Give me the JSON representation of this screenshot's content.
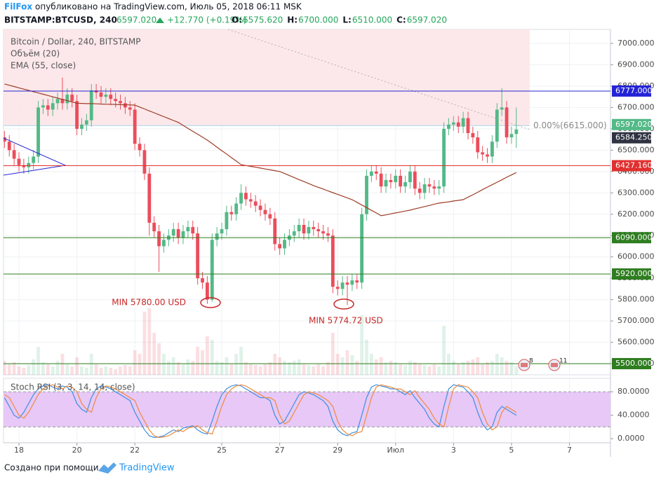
{
  "header": {
    "author": "FilFox",
    "published": "опубликовано на TradingView.com, Июль 05, 2018 06:11 MSK",
    "symbol": "BITSTAMP:BTCUSD, 240",
    "last": "6597.020",
    "change": "+12.770 (+0.19%)",
    "ohlc": [
      {
        "label": "O:",
        "value": "6575.620"
      },
      {
        "label": "H:",
        "value": "6700.000"
      },
      {
        "label": "L:",
        "value": "6510.000"
      },
      {
        "label": "C:",
        "value": "6597.020"
      }
    ]
  },
  "chart_data": {
    "type": "candlestick",
    "legend": [
      "Bitcoin / Dollar, 240, BITSTAMP",
      "Объём (20)",
      "EMA (55, close)"
    ],
    "up_color": "#53b987",
    "down_color": "#eb4d5c",
    "xlim": [
      -0.2,
      125.5
    ],
    "xticks": [
      {
        "value": 3,
        "label": "18"
      },
      {
        "value": 15,
        "label": "20"
      },
      {
        "value": 27,
        "label": "22"
      },
      {
        "value": 45,
        "label": "25"
      },
      {
        "value": 57,
        "label": "27"
      },
      {
        "value": 69,
        "label": "29"
      },
      {
        "value": 81,
        "label": "Июл"
      },
      {
        "value": 93,
        "label": "3"
      },
      {
        "value": 105,
        "label": "5"
      },
      {
        "value": 117,
        "label": "7"
      }
    ],
    "ylim": [
      5447.7,
      7065.6
    ],
    "yticks": [
      {
        "value": 5500,
        "label": "5500.000"
      },
      {
        "value": 5600,
        "label": "5600.000"
      },
      {
        "value": 5700,
        "label": "5700.000"
      },
      {
        "value": 5800,
        "label": "5800.000"
      },
      {
        "value": 5900,
        "label": "5900.000"
      },
      {
        "value": 6000,
        "label": "6000.000"
      },
      {
        "value": 6100,
        "label": "6100.000"
      },
      {
        "value": 6200,
        "label": "6200.000"
      },
      {
        "value": 6300,
        "label": "6300.000"
      },
      {
        "value": 6400,
        "label": "6400.000"
      },
      {
        "value": 6500,
        "label": "6500.000"
      },
      {
        "value": 6600,
        "label": "6600.000"
      },
      {
        "value": 6700,
        "label": "6700.000"
      },
      {
        "value": 6800,
        "label": "6800.000"
      },
      {
        "value": 6900,
        "label": "6900.000"
      },
      {
        "value": 7000,
        "label": "7000.000"
      }
    ],
    "grid": true,
    "open": [
      6560,
      6540,
      6500,
      6460,
      6430,
      6420,
      6440,
      6470,
      6700,
      6710,
      6690,
      6720,
      6740,
      6720,
      6760,
      6730,
      6600,
      6620,
      6640,
      6780,
      6770,
      6750,
      6760,
      6740,
      6730,
      6720,
      6700,
      6690,
      6530,
      6500,
      6390,
      6160,
      6120,
      6050,
      6080,
      6100,
      6130,
      6090,
      6120,
      6140,
      6110,
      5900,
      5880,
      5800,
      6080,
      6110,
      6130,
      6210,
      6200,
      6250,
      6300,
      6270,
      6260,
      6240,
      6220,
      6200,
      6180,
      6060,
      6040,
      6080,
      6100,
      6120,
      6150,
      6110,
      6140,
      6130,
      6120,
      6110,
      6100,
      5860,
      5850,
      5880,
      5870,
      5890,
      5880,
      6200,
      6380,
      6400,
      6390,
      6330,
      6360,
      6350,
      6380,
      6330,
      6350,
      6400,
      6320,
      6300,
      6340,
      6330,
      6320,
      6330,
      6600,
      6620,
      6630,
      6610,
      6650,
      6580,
      6560,
      6490,
      6480,
      6470,
      6540,
      6690,
      6700,
      6560,
      6575.62
    ],
    "high": [
      6590,
      6570,
      6530,
      6490,
      6460,
      6470,
      6500,
      6730,
      6740,
      6740,
      6750,
      6770,
      6840,
      6790,
      6790,
      6760,
      6650,
      6670,
      6810,
      6810,
      6800,
      6790,
      6790,
      6770,
      6760,
      6750,
      6730,
      6720,
      6560,
      6530,
      6420,
      6190,
      6150,
      6110,
      6130,
      6160,
      6160,
      6150,
      6170,
      6170,
      6140,
      5930,
      5910,
      6110,
      6140,
      6160,
      6240,
      6240,
      6280,
      6340,
      6330,
      6300,
      6290,
      6270,
      6250,
      6230,
      6210,
      6090,
      6110,
      6130,
      6150,
      6180,
      6180,
      6170,
      6170,
      6160,
      6150,
      6140,
      6130,
      5890,
      5910,
      5910,
      5920,
      5920,
      6230,
      6410,
      6430,
      6430,
      6420,
      6390,
      6390,
      6410,
      6410,
      6380,
      6430,
      6430,
      6350,
      6370,
      6370,
      6360,
      6360,
      6630,
      6650,
      6660,
      6660,
      6680,
      6680,
      6610,
      6590,
      6520,
      6510,
      6570,
      6720,
      6790,
      6730,
      6610,
      6700
    ],
    "low": [
      6510,
      6470,
      6430,
      6400,
      6390,
      6390,
      6410,
      6440,
      6670,
      6660,
      6660,
      6690,
      6690,
      6690,
      6700,
      6570,
      6570,
      6590,
      6610,
      6740,
      6720,
      6720,
      6710,
      6700,
      6690,
      6670,
      6660,
      6500,
      6470,
      6360,
      6100,
      6090,
      5930,
      6020,
      6050,
      6070,
      6060,
      6060,
      6090,
      6080,
      5870,
      5850,
      5780,
      5790,
      6050,
      6080,
      6100,
      6170,
      6170,
      6220,
      6240,
      6230,
      6210,
      6190,
      6170,
      6150,
      6030,
      6010,
      6010,
      6050,
      6070,
      6090,
      6080,
      6080,
      6100,
      6090,
      6080,
      6070,
      5830,
      5820,
      5820,
      5774.72,
      5840,
      5850,
      5850,
      6170,
      6350,
      6360,
      6300,
      6300,
      6320,
      6320,
      6300,
      6300,
      6320,
      6290,
      6270,
      6270,
      6300,
      6290,
      6290,
      6300,
      6570,
      6590,
      6580,
      6580,
      6550,
      6530,
      6460,
      6450,
      6440,
      6440,
      6510,
      6660,
      6530,
      6530,
      6510
    ],
    "close": [
      6540,
      6500,
      6460,
      6430,
      6420,
      6440,
      6470,
      6700,
      6710,
      6690,
      6720,
      6740,
      6720,
      6760,
      6730,
      6600,
      6620,
      6640,
      6780,
      6770,
      6750,
      6760,
      6740,
      6730,
      6720,
      6700,
      6690,
      6530,
      6500,
      6390,
      6160,
      6120,
      6050,
      6080,
      6100,
      6130,
      6090,
      6120,
      6140,
      6110,
      5900,
      5880,
      5800,
      6080,
      6110,
      6130,
      6210,
      6200,
      6250,
      6300,
      6270,
      6260,
      6240,
      6220,
      6200,
      6180,
      6060,
      6040,
      6080,
      6100,
      6120,
      6150,
      6110,
      6140,
      6130,
      6120,
      6110,
      6100,
      5860,
      5850,
      5880,
      5870,
      5890,
      5880,
      6200,
      6380,
      6400,
      6390,
      6330,
      6360,
      6350,
      6380,
      6330,
      6350,
      6400,
      6320,
      6300,
      6340,
      6330,
      6320,
      6330,
      6600,
      6620,
      6630,
      6610,
      6650,
      6580,
      6560,
      6490,
      6480,
      6470,
      6540,
      6690,
      6700,
      6560,
      6575.62,
      6597.02
    ],
    "volume": [
      20,
      15,
      18,
      12,
      10,
      14,
      22,
      40,
      18,
      15,
      12,
      20,
      30,
      15,
      12,
      25,
      12,
      10,
      30,
      15,
      10,
      12,
      10,
      8,
      12,
      14,
      12,
      35,
      30,
      90,
      95,
      60,
      45,
      30,
      20,
      25,
      18,
      15,
      22,
      20,
      40,
      35,
      55,
      50,
      20,
      18,
      25,
      15,
      30,
      40,
      18,
      15,
      14,
      12,
      15,
      18,
      30,
      25,
      20,
      18,
      20,
      22,
      15,
      14,
      12,
      15,
      12,
      18,
      60,
      30,
      25,
      35,
      28,
      20,
      85,
      50,
      30,
      22,
      25,
      18,
      20,
      18,
      15,
      14,
      20,
      18,
      15,
      14,
      12,
      15,
      12,
      70,
      30,
      20,
      15,
      18,
      20,
      22,
      25,
      15,
      18,
      20,
      30,
      25,
      20,
      18,
      12
    ],
    "ema": {
      "color": "#9c3d26",
      "values": [
        6810,
        6804,
        6798,
        6792,
        6786,
        6780,
        6774,
        6768,
        6762,
        6756,
        6750,
        6744,
        6738,
        6732,
        6726,
        6720,
        6719,
        6718,
        6718,
        6717,
        6716,
        6715,
        6715,
        6714,
        6713,
        6712,
        6712,
        6711,
        6702,
        6693,
        6684,
        6675,
        6666,
        6657,
        6648,
        6639,
        6630,
        6616,
        6602,
        6588,
        6575,
        6561,
        6547,
        6531,
        6514,
        6498,
        6482,
        6465,
        6449,
        6432,
        6428,
        6424,
        6420,
        6416,
        6412,
        6408,
        6404,
        6400,
        6391,
        6381,
        6372,
        6362,
        6353,
        6344,
        6334,
        6326,
        6318,
        6309,
        6301,
        6293,
        6285,
        6276,
        6268,
        6256,
        6243,
        6231,
        6218,
        6206,
        6193,
        6197,
        6202,
        6206,
        6210,
        6215,
        6219,
        6225,
        6230,
        6236,
        6241,
        6247,
        6252,
        6255,
        6258,
        6262,
        6265,
        6268,
        6280,
        6291,
        6303,
        6315,
        6327,
        6338,
        6350,
        6361,
        6373,
        6384,
        6395
      ]
    },
    "levels": [
      {
        "value": 6777,
        "label": "6777.000",
        "color": "#2424d6"
      },
      {
        "value": 6427.16,
        "label": "6427.160",
        "color": "#e0302f"
      },
      {
        "value": 6090,
        "label": "6090.000",
        "color": "#2e7d1f"
      },
      {
        "value": 5920,
        "label": "5920.000",
        "color": "#2e7d1f"
      },
      {
        "value": 5500,
        "label": "5500.000",
        "color": "#2e7d1f"
      }
    ],
    "price_tags": [
      {
        "value": 6597.02,
        "label": "6597.020",
        "color": "#53b987"
      },
      {
        "value": 6584.25,
        "label": "6584.250",
        "color": "#2f3241"
      }
    ],
    "fib": {
      "value": 6615,
      "label": "0.00%(6615.000)"
    },
    "annotations": [
      "MIN 5780.00 USD",
      "MIN 5774.72 USD"
    ],
    "badges": [
      "8",
      "11"
    ],
    "stoch": {
      "title": "Stoch RSI (3, 3, 14, 14, close)",
      "ylim": [
        -7,
        103
      ],
      "yticks": [
        {
          "value": 0,
          "label": "0.0000"
        },
        {
          "value": 40,
          "label": "40.0000"
        },
        {
          "value": 80,
          "label": "80.0000"
        }
      ],
      "band": [
        20,
        80
      ],
      "series": [
        {
          "name": "K",
          "color": "#3d8fe0",
          "values": [
            70,
            55,
            40,
            35,
            45,
            60,
            75,
            85,
            90,
            92,
            88,
            85,
            90,
            88,
            80,
            60,
            50,
            45,
            70,
            85,
            90,
            88,
            85,
            80,
            75,
            70,
            65,
            45,
            30,
            15,
            5,
            2,
            3,
            5,
            10,
            15,
            12,
            18,
            20,
            22,
            15,
            10,
            8,
            30,
            55,
            75,
            85,
            90,
            92,
            90,
            85,
            80,
            75,
            70,
            70,
            65,
            40,
            25,
            30,
            45,
            60,
            75,
            80,
            78,
            75,
            70,
            65,
            55,
            30,
            15,
            8,
            5,
            10,
            12,
            40,
            70,
            88,
            92,
            90,
            88,
            85,
            85,
            80,
            75,
            82,
            70,
            60,
            50,
            35,
            25,
            20,
            55,
            85,
            92,
            90,
            88,
            80,
            70,
            45,
            25,
            15,
            20,
            45,
            55,
            50,
            45,
            40
          ]
        },
        {
          "name": "D",
          "color": "#f08a3c",
          "values": [
            75,
            70,
            55,
            40,
            35,
            45,
            60,
            75,
            85,
            90,
            92,
            88,
            85,
            90,
            88,
            80,
            60,
            50,
            45,
            70,
            85,
            90,
            88,
            85,
            80,
            75,
            70,
            65,
            45,
            30,
            15,
            5,
            2,
            3,
            5,
            10,
            15,
            12,
            18,
            20,
            22,
            15,
            10,
            8,
            30,
            55,
            75,
            85,
            90,
            92,
            90,
            85,
            80,
            75,
            70,
            70,
            65,
            40,
            25,
            30,
            45,
            60,
            75,
            80,
            78,
            75,
            70,
            65,
            55,
            30,
            15,
            8,
            5,
            10,
            12,
            40,
            70,
            88,
            92,
            90,
            88,
            85,
            85,
            80,
            75,
            82,
            70,
            60,
            50,
            35,
            25,
            20,
            55,
            85,
            92,
            90,
            88,
            80,
            70,
            45,
            25,
            15,
            20,
            45,
            55,
            50,
            45
          ]
        }
      ]
    }
  },
  "footer": {
    "text": "Создано при помощи",
    "brand": "TradingView"
  }
}
